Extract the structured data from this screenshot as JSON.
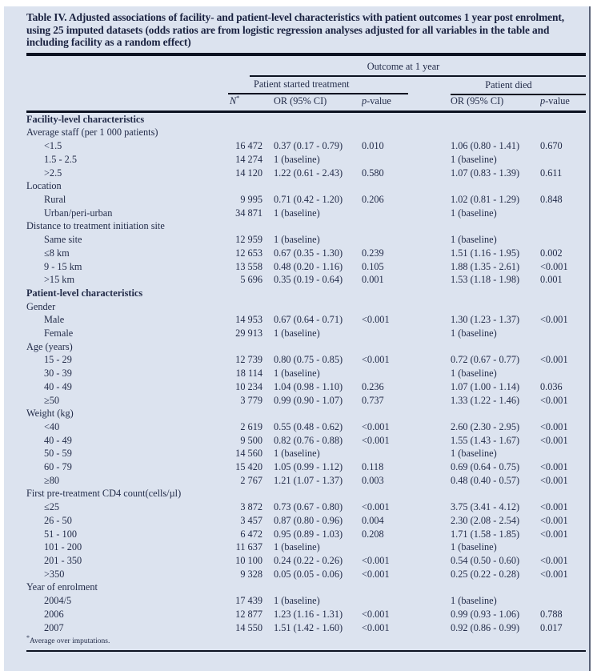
{
  "page": {
    "title": "Table IV. Adjusted associations of facility- and patient-level characteristics with patient outcomes 1 year post enrolment, using 25 imputed datasets (odds ratios are from logistic regression analyses adjusted for all variables in the table and including facility as a random effect)",
    "footnote_marker": "*",
    "footnote_text": "Average over imputations.",
    "colors": {
      "panel_bg": "#dce3ef",
      "text_color": "#232c49",
      "title_color": "#1a2240",
      "rule": "#0d1322",
      "edge": "#5a6278"
    }
  },
  "header": {
    "outcome_group": "Outcome at 1 year",
    "started_group": "Patient started treatment",
    "died_group": "Patient died",
    "n_base": "N",
    "n_sup": "*",
    "or_label": "OR (95% CI)",
    "p_italic": "p",
    "p_rest": "-value"
  },
  "rows": [
    {
      "type": "section",
      "label": "Facility-level characteristics"
    },
    {
      "type": "subhead",
      "label": "Average staff (per 1 000 patients)"
    },
    {
      "type": "data",
      "label": "<1.5",
      "n": "16 472",
      "or1": "0.37 (0.17 - 0.79)",
      "p1": "0.010",
      "or2": "1.06 (0.80 - 1.41)",
      "p2": "0.670"
    },
    {
      "type": "data",
      "label": "1.5 - 2.5",
      "n": "14 274",
      "or1": "1 (baseline)",
      "p1": "",
      "or2": "1 (baseline)",
      "p2": ""
    },
    {
      "type": "data",
      "label": ">2.5",
      "n": "14 120",
      "or1": "1.22 (0.61 - 2.43)",
      "p1": "0.580",
      "or2": "1.07 (0.83 - 1.39)",
      "p2": "0.611"
    },
    {
      "type": "subhead",
      "label": "Location"
    },
    {
      "type": "data",
      "label": "Rural",
      "n": "9 995",
      "or1": "0.71 (0.42 - 1.20)",
      "p1": "0.206",
      "or2": "1.02 (0.81 - 1.29)",
      "p2": "0.848"
    },
    {
      "type": "data",
      "label": "Urban/peri-urban",
      "n": "34 871",
      "or1": "1 (baseline)",
      "p1": "",
      "or2": "1 (baseline)",
      "p2": ""
    },
    {
      "type": "subhead",
      "label": "Distance to treatment initiation site"
    },
    {
      "type": "data",
      "label": "Same site",
      "n": "12 959",
      "or1": "1 (baseline)",
      "p1": "",
      "or2": "1 (baseline)",
      "p2": ""
    },
    {
      "type": "data",
      "label": "≤8 km",
      "n": "12 653",
      "or1": "0.67 (0.35 - 1.30)",
      "p1": "0.239",
      "or2": "1.51 (1.16 - 1.95)",
      "p2": "0.002"
    },
    {
      "type": "data",
      "label": "9 - 15 km",
      "n": "13 558",
      "or1": "0.48 (0.20 - 1.16)",
      "p1": "0.105",
      "or2": "1.88 (1.35 - 2.61)",
      "p2": "<0.001"
    },
    {
      "type": "data",
      "label": ">15 km",
      "n": "5 696",
      "or1": "0.35 (0.19 - 0.64)",
      "p1": "0.001",
      "or2": "1.53 (1.18 - 1.98)",
      "p2": "0.001"
    },
    {
      "type": "section",
      "label": "Patient-level characteristics"
    },
    {
      "type": "subhead",
      "label": "Gender"
    },
    {
      "type": "data",
      "label": "Male",
      "n": "14 953",
      "or1": "0.67 (0.64 - 0.71)",
      "p1": "<0.001",
      "or2": "1.30 (1.23 - 1.37)",
      "p2": "<0.001"
    },
    {
      "type": "data",
      "label": "Female",
      "n": "29 913",
      "or1": "1 (baseline)",
      "p1": "",
      "or2": "1 (baseline)",
      "p2": ""
    },
    {
      "type": "subhead",
      "label": "Age (years)"
    },
    {
      "type": "data",
      "label": "15 - 29",
      "n": "12 739",
      "or1": "0.80 (0.75 - 0.85)",
      "p1": "<0.001",
      "or2": "0.72 (0.67 - 0.77)",
      "p2": "<0.001"
    },
    {
      "type": "data",
      "label": "30 - 39",
      "n": "18 114",
      "or1": "1 (baseline)",
      "p1": "",
      "or2": "1 (baseline)",
      "p2": ""
    },
    {
      "type": "data",
      "label": "40 - 49",
      "n": "10 234",
      "or1": "1.04 (0.98 - 1.10)",
      "p1": "0.236",
      "or2": "1.07 (1.00 - 1.14)",
      "p2": "0.036"
    },
    {
      "type": "data",
      "label": "≥50",
      "n": "3 779",
      "or1": "0.99 (0.90 - 1.07)",
      "p1": "0.737",
      "or2": "1.33 (1.22 - 1.46)",
      "p2": "<0.001"
    },
    {
      "type": "subhead",
      "label": "Weight (kg)"
    },
    {
      "type": "data",
      "label": "<40",
      "n": "2 619",
      "or1": "0.55 (0.48 - 0.62)",
      "p1": "<0.001",
      "or2": "2.60 (2.30 - 2.95)",
      "p2": "<0.001"
    },
    {
      "type": "data",
      "label": "40 - 49",
      "n": "9 500",
      "or1": "0.82 (0.76 - 0.88)",
      "p1": "<0.001",
      "or2": "1.55 (1.43 - 1.67)",
      "p2": "<0.001"
    },
    {
      "type": "data",
      "label": "50 - 59",
      "n": "14 560",
      "or1": "1 (baseline)",
      "p1": "",
      "or2": "1 (baseline)",
      "p2": ""
    },
    {
      "type": "data",
      "label": "60 - 79",
      "n": "15 420",
      "or1": "1.05 (0.99 - 1.12)",
      "p1": "0.118",
      "or2": "0.69 (0.64 - 0.75)",
      "p2": "<0.001"
    },
    {
      "type": "data",
      "label": "≥80",
      "n": "2 767",
      "or1": "1.21 (1.07 - 1.37)",
      "p1": "0.003",
      "or2": "0.48 (0.40 - 0.57)",
      "p2": "<0.001"
    },
    {
      "type": "subhead",
      "label": "First pre-treatment CD4 count(cells/µl)"
    },
    {
      "type": "data",
      "label": "≤25",
      "n": "3 872",
      "or1": "0.73 (0.67 - 0.80)",
      "p1": "<0.001",
      "or2": "3.75 (3.41 - 4.12)",
      "p2": "<0.001"
    },
    {
      "type": "data",
      "label": "26 - 50",
      "n": "3 457",
      "or1": "0.87 (0.80 - 0.96)",
      "p1": "0.004",
      "or2": "2.30 (2.08 - 2.54)",
      "p2": "<0.001"
    },
    {
      "type": "data",
      "label": "51 - 100",
      "n": "6 472",
      "or1": "0.95 (0.89 - 1.03)",
      "p1": "0.208",
      "or2": "1.71 (1.58 - 1.85)",
      "p2": "<0.001"
    },
    {
      "type": "data",
      "label": "101 - 200",
      "n": "11 637",
      "or1": "1 (baseline)",
      "p1": "",
      "or2": "1 (baseline)",
      "p2": ""
    },
    {
      "type": "data",
      "label": "201 - 350",
      "n": "10 100",
      "or1": "0.24 (0.22 - 0.26)",
      "p1": "<0.001",
      "or2": "0.54 (0.50 - 0.60)",
      "p2": "<0.001"
    },
    {
      "type": "data",
      "label": ">350",
      "n": "9 328",
      "or1": "0.05 (0.05 - 0.06)",
      "p1": "<0.001",
      "or2": "0.25 (0.22 - 0.28)",
      "p2": "<0.001"
    },
    {
      "type": "subhead",
      "label": "Year of enrolment"
    },
    {
      "type": "data",
      "label": "2004/5",
      "n": "17 439",
      "or1": "1 (baseline)",
      "p1": "",
      "or2": "1 (baseline)",
      "p2": ""
    },
    {
      "type": "data",
      "label": "2006",
      "n": "12 877",
      "or1": "1.23 (1.16 - 1.31)",
      "p1": "<0.001",
      "or2": "0.99 (0.93 - 1.06)",
      "p2": "0.788"
    },
    {
      "type": "data",
      "label": "2007",
      "n": "14 550",
      "or1": "1.51 (1.42 - 1.60)",
      "p1": "<0.001",
      "or2": "0.92 (0.86 - 0.99)",
      "p2": "0.017"
    }
  ]
}
